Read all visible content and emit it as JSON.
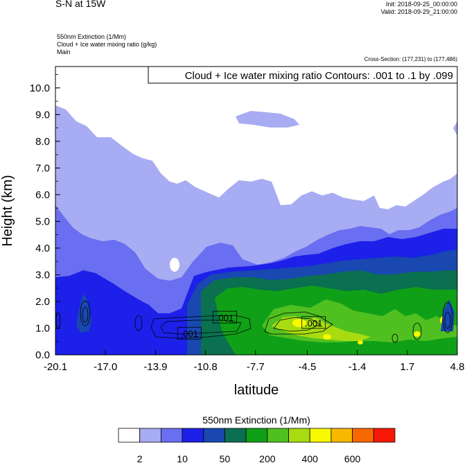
{
  "header": {
    "title": "S-N at 15W",
    "init": "Init: 2018-09-25_00:00:00",
    "valid": "Valid: 2018-09-29_21:00:00",
    "line1": "550nm Extinction   (1/Mm)",
    "line2": "Cloud + Ice water mixing ratio   (g/kg)",
    "line3": "Main",
    "cross_section": "Cross-Section: (177,231) to (177,486)"
  },
  "chart_data": {
    "type": "heatmap",
    "title": "",
    "xlabel": "latitude",
    "ylabel": "Height (km)",
    "xlim": [
      -20.1,
      4.8
    ],
    "ylim": [
      0.0,
      10.8
    ],
    "x_ticks": [
      "-20.1",
      "-17.0",
      "-13.9",
      "-10.8",
      "-7.7",
      "-4.5",
      "-1.4",
      "1.7",
      "4.8"
    ],
    "y_ticks": [
      "0.0",
      "1.0",
      "2.0",
      "3.0",
      "4.0",
      "5.0",
      "6.0",
      "7.0",
      "8.0",
      "9.0",
      "10.0"
    ],
    "contour_info": "Cloud + Ice water mixing ratio Contours: .001 to .1 by .099",
    "contour_labels": [
      {
        "text": ".001",
        "lat": -9.6,
        "height": 1.4
      },
      {
        "text": ".001",
        "lat": -11.8,
        "height": 0.8
      },
      {
        "text": ".001",
        "lat": -4.1,
        "height": 1.2
      }
    ],
    "colorbar": {
      "title": "550nm Extinction  (1/Mm)",
      "colors": [
        "#ffffff",
        "#a8acf2",
        "#6a6ef0",
        "#1c20e8",
        "#1848b0",
        "#0a7050",
        "#10a018",
        "#50c020",
        "#a8dc10",
        "#f8f800",
        "#f8b800",
        "#f86800",
        "#f81808"
      ],
      "tick_labels": [
        "2",
        "10",
        "50",
        "200",
        "400",
        "600"
      ]
    },
    "grid": false,
    "legend": "bottom"
  }
}
